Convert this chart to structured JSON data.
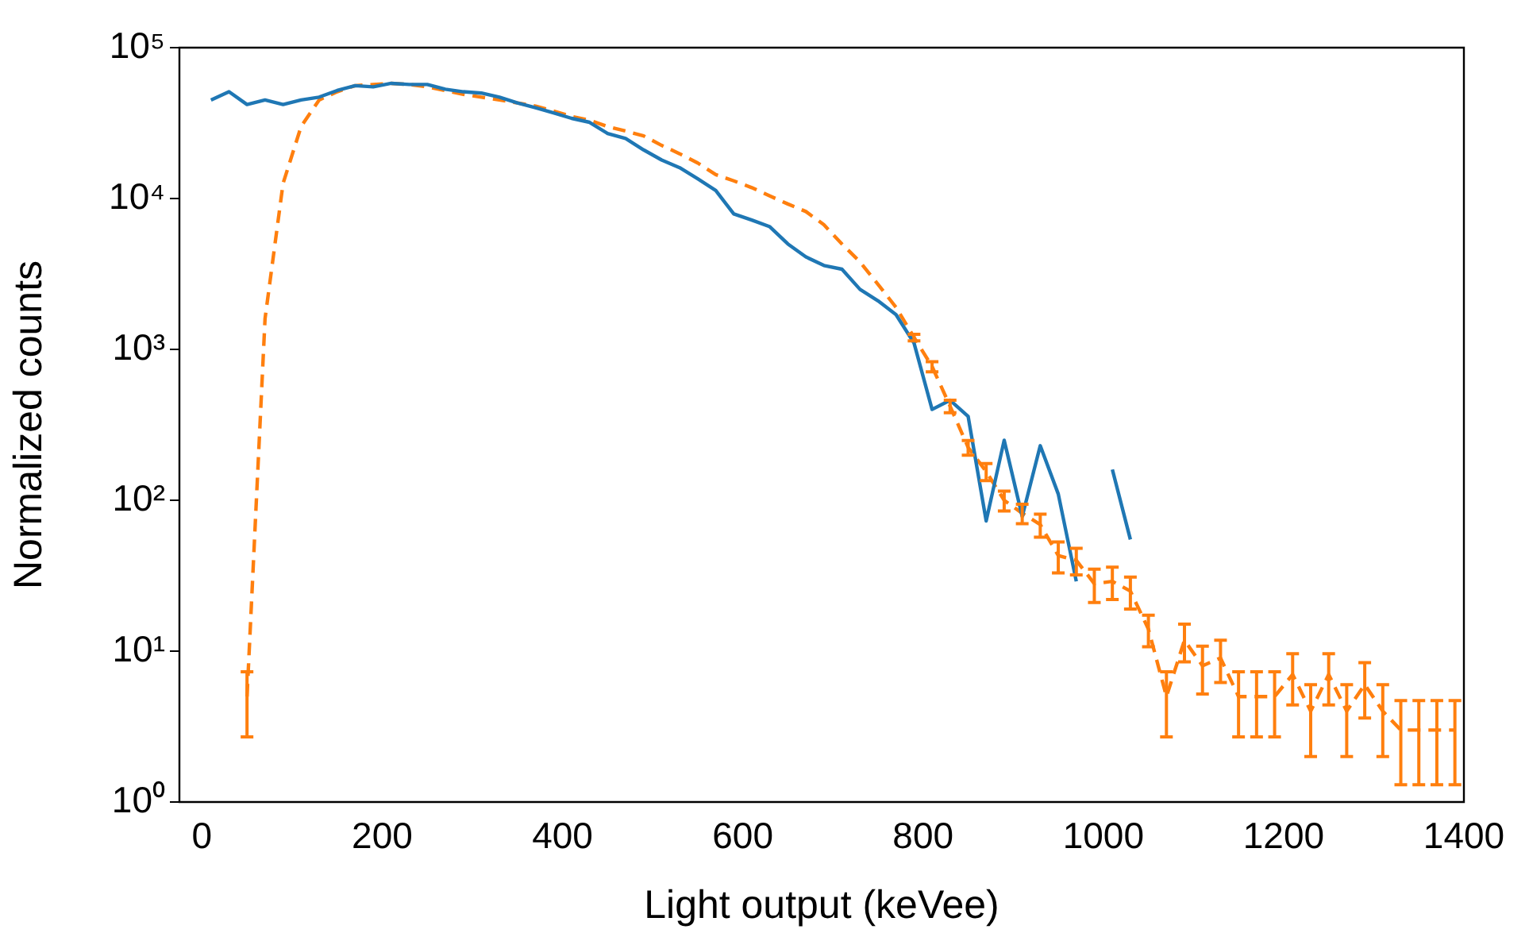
{
  "chart_data": {
    "type": "line",
    "xlabel": "Light output (keVee)",
    "ylabel": "Normalized counts",
    "log": "y",
    "marker": "none",
    "xlim": [
      -25,
      1400
    ],
    "xticks": [
      0,
      200,
      400,
      600,
      800,
      1000,
      1200,
      1400
    ],
    "ylim": [
      1,
      100000
    ],
    "yticks": [
      {
        "value": 1,
        "label": "10⁰"
      },
      {
        "value": 10,
        "label": "10¹"
      },
      {
        "value": 100,
        "label": "10²"
      },
      {
        "value": 1000,
        "label": "10³"
      },
      {
        "value": 10000,
        "label": "10⁴"
      },
      {
        "value": 100000,
        "label": "10⁵"
      }
    ],
    "series": [
      {
        "color": "#1f77b4",
        "line_style": "solid",
        "x": [
          10,
          30,
          50,
          70,
          90,
          110,
          130,
          150,
          170,
          190,
          210,
          230,
          250,
          270,
          290,
          310,
          330,
          350,
          370,
          390,
          410,
          430,
          450,
          470,
          490,
          510,
          530,
          550,
          570,
          590,
          610,
          630,
          650,
          670,
          690,
          710,
          730,
          750,
          770,
          790,
          810,
          830,
          850,
          870,
          890,
          910,
          930,
          950,
          970,
          990,
          1010,
          1030
        ],
        "values": [
          45000,
          51000,
          42000,
          45000,
          42000,
          45000,
          47000,
          52000,
          56000,
          55000,
          58000,
          57000,
          57000,
          53000,
          51000,
          50000,
          47000,
          43000,
          40000,
          37000,
          34000,
          32000,
          27000,
          25000,
          21000,
          18000,
          16000,
          13500,
          11300,
          7900,
          7200,
          6500,
          5000,
          4100,
          3600,
          3400,
          2500,
          2100,
          1700,
          1100,
          400,
          460,
          360,
          73,
          250,
          78,
          230,
          110,
          29,
          null,
          160,
          55
        ]
      },
      {
        "color": "#ff7f0e",
        "line_style": "dashed",
        "x": [
          50,
          70,
          90,
          110,
          130,
          150,
          170,
          190,
          210,
          230,
          250,
          270,
          290,
          310,
          330,
          350,
          370,
          390,
          410,
          430,
          450,
          470,
          490,
          510,
          530,
          550,
          570,
          590,
          610,
          630,
          650,
          670,
          690,
          710,
          730,
          750,
          770,
          790,
          810,
          830,
          850,
          870,
          890,
          910,
          930,
          950,
          970,
          990,
          1010,
          1030,
          1050,
          1070,
          1090,
          1110,
          1130,
          1150,
          1170,
          1190,
          1210,
          1230,
          1250,
          1270,
          1290,
          1310,
          1330,
          1350,
          1370,
          1390
        ],
        "values": [
          5,
          1600,
          12600,
          30000,
          45000,
          51000,
          56000,
          57000,
          58000,
          57000,
          55000,
          52000,
          49000,
          47000,
          45000,
          43000,
          41000,
          38000,
          35000,
          33000,
          30000,
          28000,
          26000,
          22500,
          19800,
          17200,
          14400,
          13100,
          11800,
          10400,
          9200,
          8200,
          6700,
          5000,
          3800,
          2700,
          1900,
          1200,
          770,
          420,
          224,
          155,
          100,
          82,
          69,
          43,
          40,
          28,
          29,
          25,
          14,
          5,
          11.8,
          8,
          9,
          5,
          5,
          5,
          7,
          4,
          7,
          4,
          6,
          4,
          3,
          3,
          3,
          3
        ],
        "errors": [
          2.3,
          null,
          null,
          null,
          null,
          null,
          null,
          null,
          null,
          null,
          null,
          null,
          null,
          null,
          null,
          null,
          null,
          null,
          null,
          null,
          null,
          null,
          null,
          null,
          null,
          null,
          null,
          null,
          null,
          null,
          null,
          null,
          null,
          null,
          null,
          null,
          null,
          60,
          60,
          40,
          25,
          20,
          15,
          12,
          12,
          10,
          8,
          7,
          7,
          6,
          3.3,
          2.3,
          3.3,
          2.8,
          2.8,
          2.3,
          2.3,
          2.3,
          2.6,
          2,
          2.6,
          2,
          2.4,
          2,
          1.7,
          1.7,
          1.7,
          1.7
        ]
      }
    ]
  }
}
